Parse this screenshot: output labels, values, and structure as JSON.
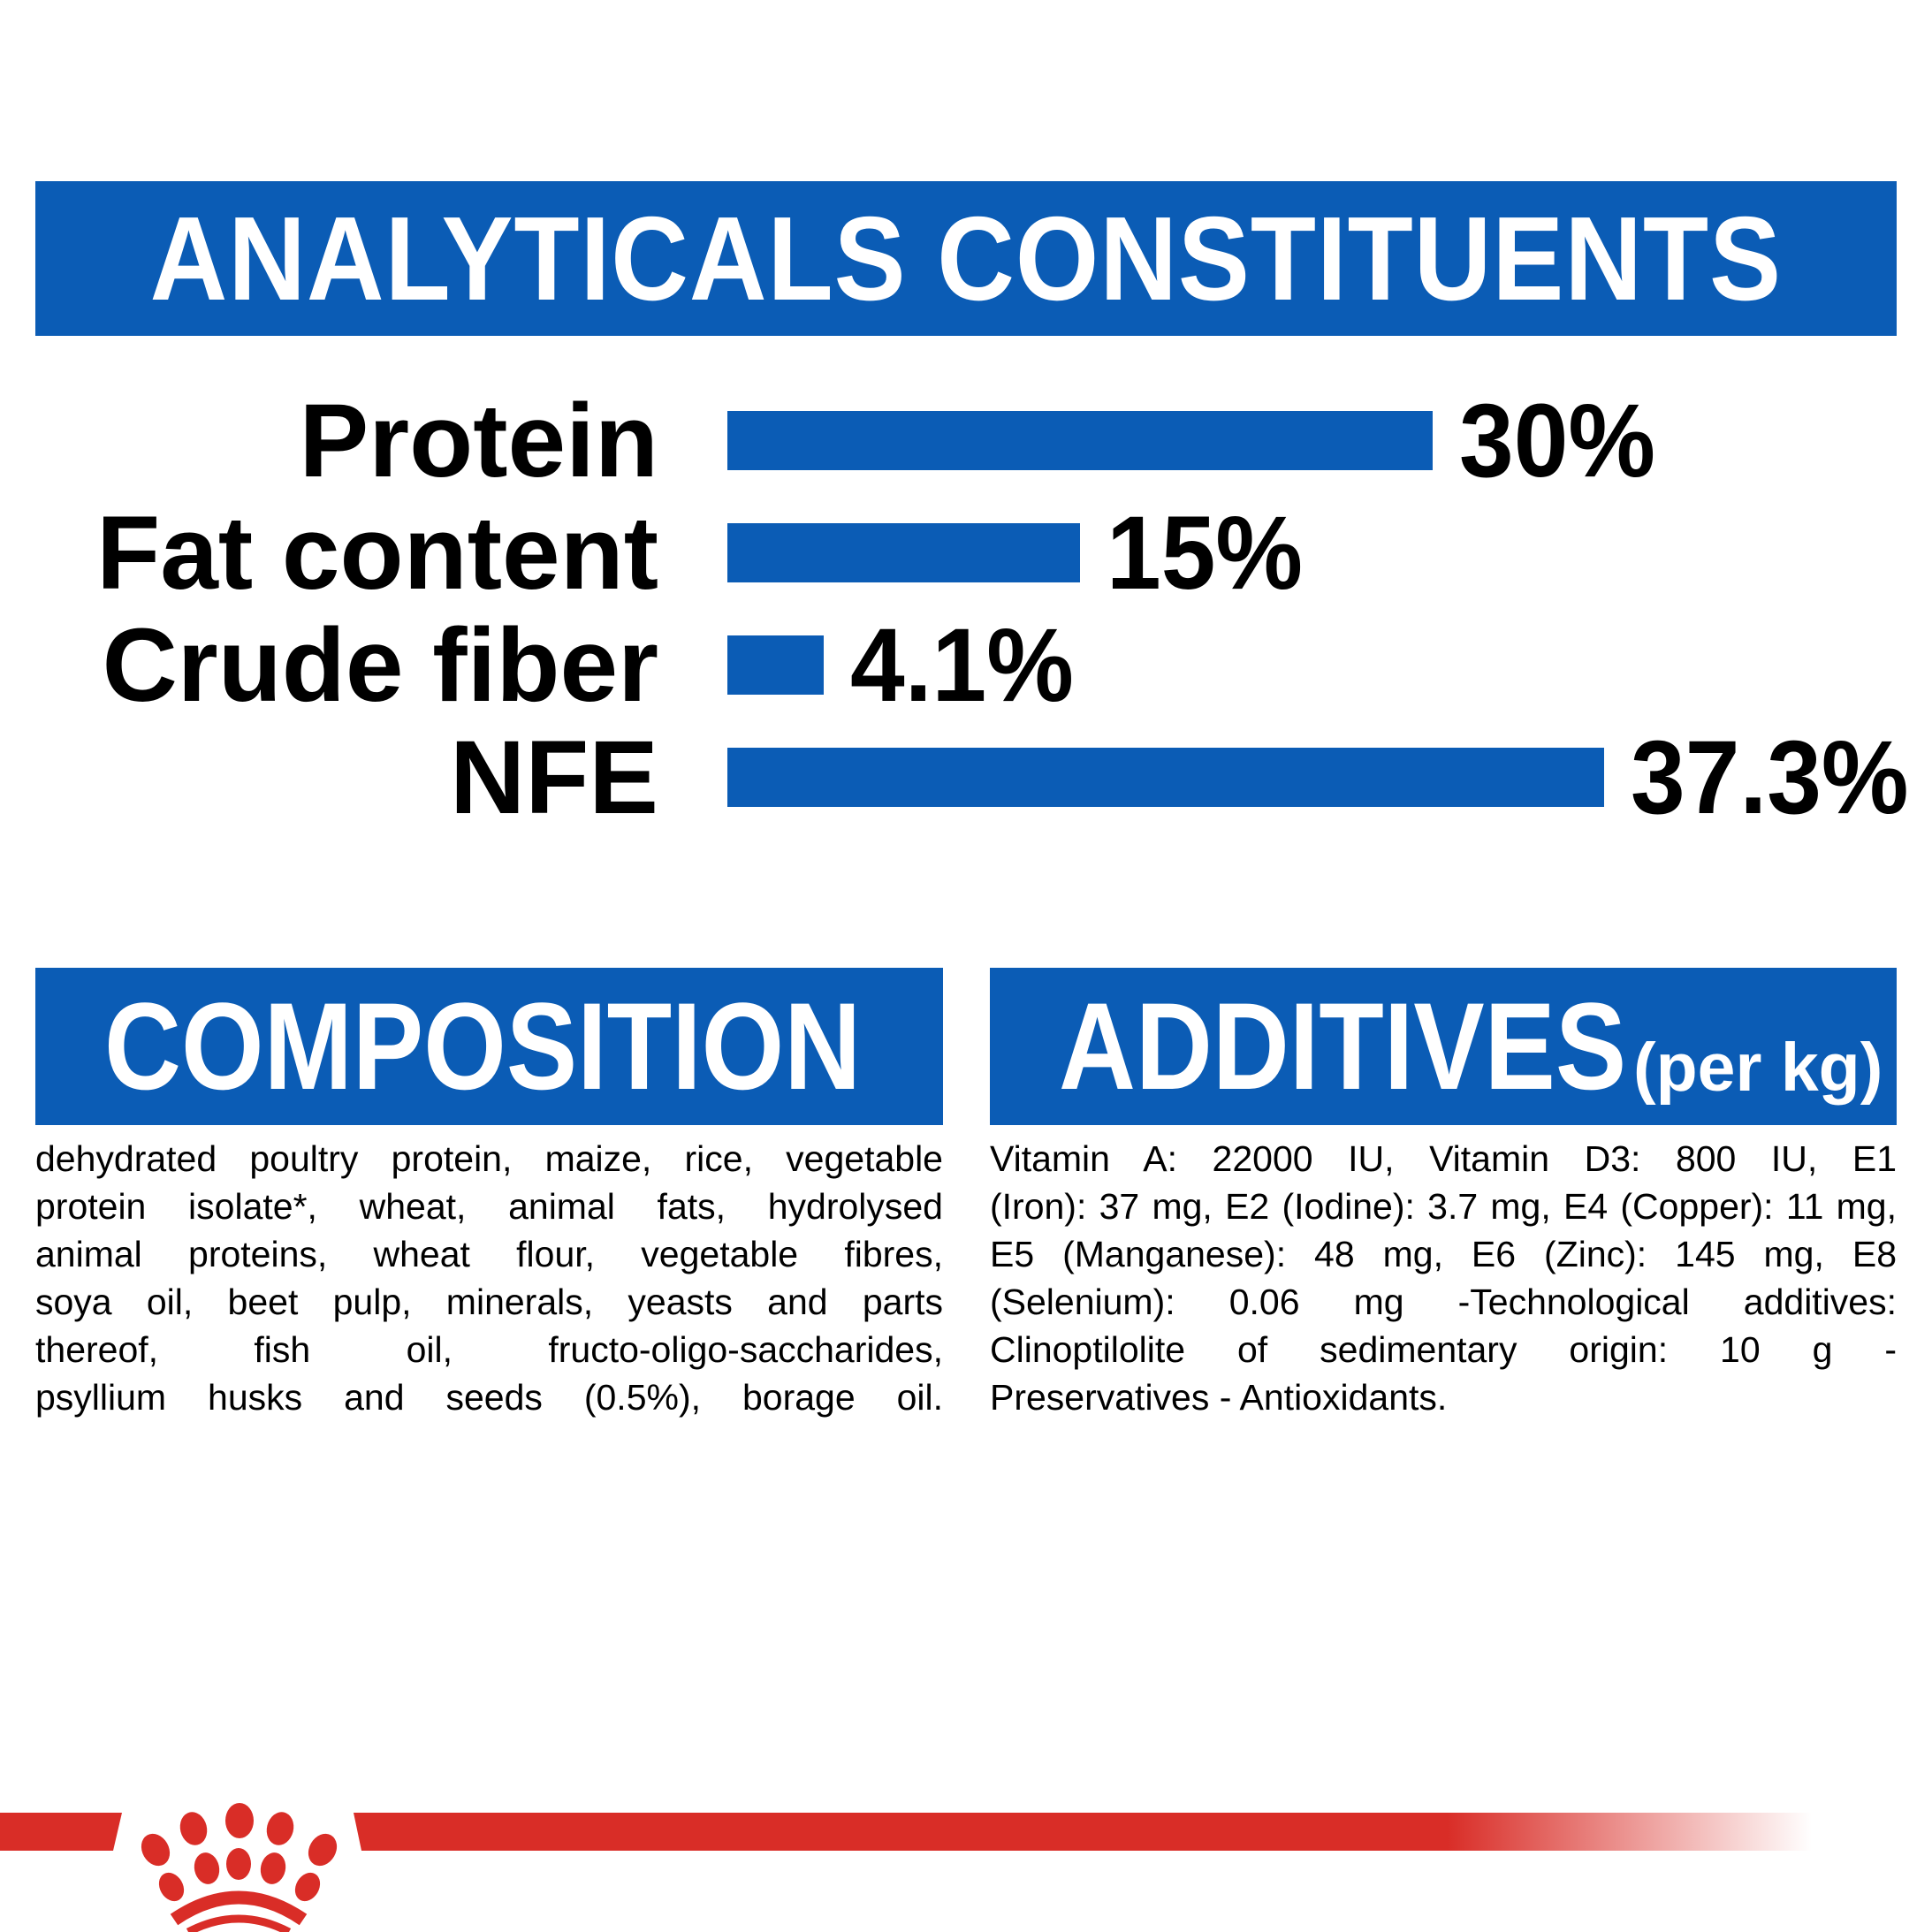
{
  "colors": {
    "blue": "#0B5CB5",
    "red": "#D92D27",
    "text": "#000000",
    "background": "#FFFFFF"
  },
  "header": {
    "title": "ANALYTICALS CONSTITUENTS"
  },
  "chart_data": {
    "type": "bar",
    "orientation": "horizontal",
    "title": "ANALYTICALS CONSTITUENTS",
    "categories": [
      "Protein",
      "Fat content",
      "Crude fiber",
      "NFE"
    ],
    "values": [
      30,
      15,
      4.1,
      37.3
    ],
    "value_labels": [
      "30%",
      "15%",
      "4.1%",
      "37.3%"
    ],
    "unit": "%",
    "xlim": [
      0,
      40
    ],
    "bar_color": "#0B5CB5",
    "grid": false,
    "legend": false
  },
  "composition": {
    "title": "COMPOSITION",
    "lines": [
      "dehydrated poultry protein, maize, rice, vegetable",
      "protein isolate*, wheat, animal fats, hydrolysed",
      "animal proteins, wheat flour, vegetable fibres,",
      "soya oil, beet pulp, minerals, yeasts and parts",
      "thereof, fish oil, fructo-oligo-saccharides,",
      "psyllium husks and seeds (0.5%), borage oil."
    ]
  },
  "additives": {
    "title": "ADDITIVES",
    "title_suffix": "(per kg)",
    "lines": [
      "Vitamin A: 22000 IU, Vitamin D3: 800 IU, E1",
      "(Iron): 37 mg, E2 (Iodine): 3.7 mg, E4 (Copper): 11 mg,",
      "E5 (Manganese): 48 mg, E6 (Zinc): 145 mg, E8",
      "(Selenium): 0.06 mg -Technological additives:",
      "Clinoptilolite of sedimentary origin: 10 g -",
      "Preservatives - Antioxidants."
    ]
  },
  "footer": {
    "brand_mark": "royal-canin-crown-logo"
  }
}
